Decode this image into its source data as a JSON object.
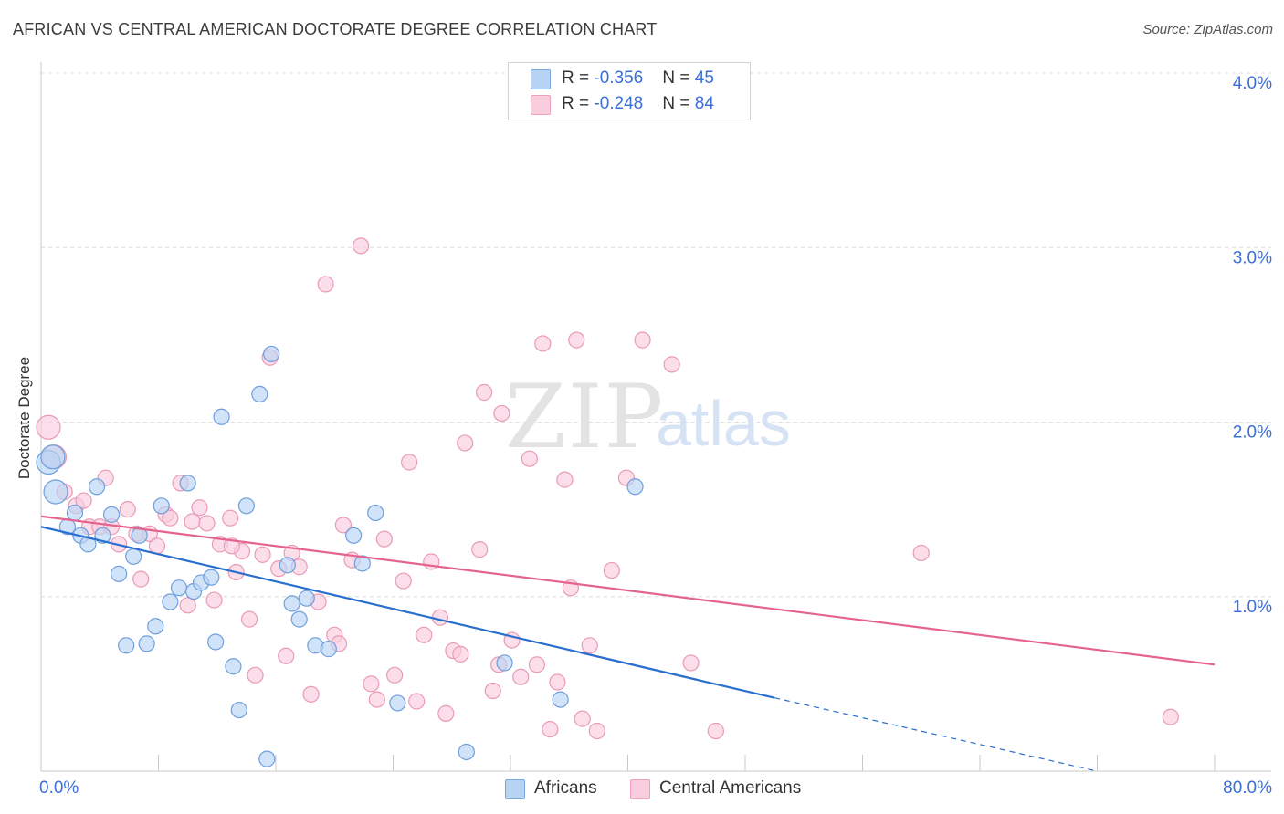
{
  "title": "AFRICAN VS CENTRAL AMERICAN DOCTORATE DEGREE CORRELATION CHART",
  "source": "Source: ZipAtlas.com",
  "watermark": {
    "zip": "ZIP",
    "atlas": "atlas"
  },
  "legend": {
    "rows": [
      {
        "r_label": "R = ",
        "r_value": "-0.356",
        "n_label": "N = ",
        "n_value": "45",
        "color": "#b8d4f5",
        "stroke": "#7aa6e0"
      },
      {
        "r_label": "R = ",
        "r_value": "-0.248",
        "n_label": "N = ",
        "n_value": "84",
        "color": "#f9cddd",
        "stroke": "#ee9fbb"
      }
    ]
  },
  "colors": {
    "african_fill": "#b8d4f5",
    "african_stroke": "#6f9fdc",
    "african_line": "#2a6fce",
    "central_fill": "#f9cddd",
    "central_stroke": "#ea9ab7",
    "central_line": "#e4648f",
    "tick_label": "#3a6fd8",
    "grid": "#dcdcdc"
  },
  "chart_data": {
    "type": "scatter",
    "ylabel": "Doctorate Degree",
    "x_tick_labels": [
      "0.0%",
      "80.0%"
    ],
    "y_tick_labels": [
      "1.0%",
      "2.0%",
      "3.0%",
      "4.0%"
    ],
    "xlim": [
      0,
      80
    ],
    "ylim": [
      0,
      4.0
    ],
    "grid": "horizontal dashed",
    "legend_position": "bottom-center",
    "series": [
      {
        "name": "Africans",
        "r": -0.356,
        "n": 45,
        "trend": {
          "x0": 0,
          "y0": 1.4,
          "x1": 50,
          "y1": 0.42,
          "dashed_to_x": 72,
          "dashed_to_y": 0.0
        },
        "points": [
          [
            0.5,
            1.77
          ],
          [
            1.0,
            1.6
          ],
          [
            1.8,
            1.4
          ],
          [
            2.3,
            1.48
          ],
          [
            2.7,
            1.35
          ],
          [
            3.2,
            1.3
          ],
          [
            3.8,
            1.63
          ],
          [
            4.2,
            1.35
          ],
          [
            4.8,
            1.47
          ],
          [
            5.3,
            1.13
          ],
          [
            5.8,
            0.72
          ],
          [
            6.3,
            1.23
          ],
          [
            6.7,
            1.35
          ],
          [
            7.2,
            0.73
          ],
          [
            7.8,
            0.83
          ],
          [
            8.2,
            1.52
          ],
          [
            8.8,
            0.97
          ],
          [
            9.4,
            1.05
          ],
          [
            10.0,
            1.65
          ],
          [
            10.4,
            1.03
          ],
          [
            10.9,
            1.08
          ],
          [
            11.6,
            1.11
          ],
          [
            11.9,
            0.74
          ],
          [
            12.3,
            2.03
          ],
          [
            13.1,
            0.6
          ],
          [
            13.5,
            0.35
          ],
          [
            14.0,
            1.52
          ],
          [
            14.9,
            2.16
          ],
          [
            15.4,
            0.07
          ],
          [
            15.7,
            2.39
          ],
          [
            16.8,
            1.18
          ],
          [
            17.1,
            0.96
          ],
          [
            17.6,
            0.87
          ],
          [
            18.1,
            0.99
          ],
          [
            18.7,
            0.72
          ],
          [
            19.6,
            0.7
          ],
          [
            21.3,
            1.35
          ],
          [
            21.9,
            1.19
          ],
          [
            22.8,
            1.48
          ],
          [
            24.3,
            0.39
          ],
          [
            29.0,
            0.11
          ],
          [
            31.6,
            0.62
          ],
          [
            35.4,
            0.41
          ],
          [
            40.5,
            1.63
          ],
          [
            0.8,
            1.8
          ]
        ]
      },
      {
        "name": "Central Americans",
        "r": -0.248,
        "n": 84,
        "trend": {
          "x0": 0,
          "y0": 1.46,
          "x1": 80,
          "y1": 0.61
        },
        "points": [
          [
            0.5,
            1.97
          ],
          [
            0.9,
            1.8
          ],
          [
            1.6,
            1.6
          ],
          [
            2.4,
            1.52
          ],
          [
            2.9,
            1.55
          ],
          [
            3.3,
            1.4
          ],
          [
            4.0,
            1.4
          ],
          [
            4.4,
            1.68
          ],
          [
            4.8,
            1.4
          ],
          [
            5.3,
            1.3
          ],
          [
            5.9,
            1.5
          ],
          [
            6.5,
            1.36
          ],
          [
            6.8,
            1.1
          ],
          [
            7.4,
            1.36
          ],
          [
            7.9,
            1.29
          ],
          [
            8.5,
            1.47
          ],
          [
            8.8,
            1.45
          ],
          [
            9.5,
            1.65
          ],
          [
            10.0,
            0.95
          ],
          [
            10.3,
            1.43
          ],
          [
            10.8,
            1.51
          ],
          [
            11.3,
            1.42
          ],
          [
            11.8,
            0.98
          ],
          [
            12.2,
            1.3
          ],
          [
            12.9,
            1.45
          ],
          [
            13.3,
            1.14
          ],
          [
            13.7,
            1.26
          ],
          [
            14.2,
            0.87
          ],
          [
            14.6,
            0.55
          ],
          [
            15.1,
            1.24
          ],
          [
            15.6,
            2.37
          ],
          [
            16.2,
            1.16
          ],
          [
            16.7,
            0.66
          ],
          [
            17.1,
            1.25
          ],
          [
            17.6,
            1.17
          ],
          [
            18.4,
            0.44
          ],
          [
            18.9,
            0.97
          ],
          [
            19.4,
            2.79
          ],
          [
            20.0,
            0.78
          ],
          [
            20.3,
            0.73
          ],
          [
            20.6,
            1.41
          ],
          [
            21.2,
            1.21
          ],
          [
            21.8,
            3.01
          ],
          [
            22.5,
            0.5
          ],
          [
            22.9,
            0.41
          ],
          [
            23.4,
            1.33
          ],
          [
            24.1,
            0.55
          ],
          [
            24.7,
            1.09
          ],
          [
            25.1,
            1.77
          ],
          [
            25.6,
            0.4
          ],
          [
            26.1,
            0.78
          ],
          [
            26.6,
            1.2
          ],
          [
            27.2,
            0.88
          ],
          [
            27.6,
            0.33
          ],
          [
            28.1,
            0.69
          ],
          [
            28.6,
            0.67
          ],
          [
            28.9,
            1.88
          ],
          [
            29.9,
            1.27
          ],
          [
            30.2,
            2.17
          ],
          [
            30.8,
            0.46
          ],
          [
            31.2,
            0.61
          ],
          [
            31.4,
            2.05
          ],
          [
            32.1,
            0.75
          ],
          [
            32.7,
            0.54
          ],
          [
            33.3,
            1.79
          ],
          [
            33.8,
            0.61
          ],
          [
            34.2,
            2.45
          ],
          [
            34.7,
            0.24
          ],
          [
            35.2,
            0.51
          ],
          [
            35.7,
            1.67
          ],
          [
            36.1,
            1.05
          ],
          [
            36.5,
            2.47
          ],
          [
            36.9,
            0.3
          ],
          [
            37.4,
            0.72
          ],
          [
            37.9,
            0.23
          ],
          [
            38.9,
            1.15
          ],
          [
            39.9,
            1.68
          ],
          [
            41.0,
            2.47
          ],
          [
            43.0,
            2.33
          ],
          [
            44.3,
            0.62
          ],
          [
            46.0,
            0.23
          ],
          [
            60.0,
            1.25
          ],
          [
            77.0,
            0.31
          ],
          [
            13.0,
            1.29
          ]
        ]
      }
    ]
  }
}
